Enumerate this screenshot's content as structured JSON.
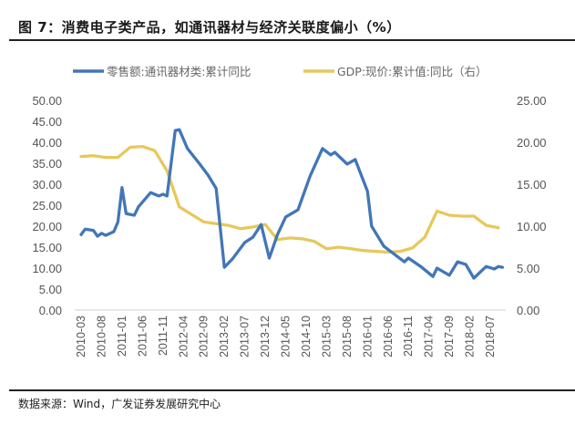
{
  "title": "图 7：消费电子类产品，如通讯器材与经济关联度偏小（%）",
  "source": "数据来源：Wind，广发证券发展研究中心",
  "chart_data": {
    "type": "line",
    "title": "",
    "legend_position": "top",
    "grid": false,
    "left_axis": {
      "ylim": [
        0,
        50
      ],
      "ticks": [
        "0.00",
        "5.00",
        "10.00",
        "15.00",
        "20.00",
        "25.00",
        "30.00",
        "35.00",
        "40.00",
        "45.00",
        "50.00"
      ]
    },
    "right_axis": {
      "ylim": [
        0,
        25
      ],
      "ticks": [
        "0.00",
        "5.00",
        "10.00",
        "15.00",
        "20.00",
        "25.00"
      ]
    },
    "x_ticks": [
      "2010-03",
      "2010-08",
      "2011-01",
      "2011-06",
      "2011-11",
      "2012-04",
      "2012-09",
      "2013-02",
      "2013-07",
      "2013-12",
      "2014-05",
      "2014-10",
      "2015-03",
      "2015-08",
      "2016-01",
      "2016-06",
      "2016-11",
      "2017-04",
      "2017-09",
      "2018-02",
      "2018-07"
    ],
    "series": [
      {
        "name": "零售额:通讯器材类:累计同比",
        "axis": "left",
        "color": "#4276B8",
        "points": [
          [
            "2010-03",
            18.0
          ],
          [
            "2010-04",
            19.3
          ],
          [
            "2010-06",
            19.0
          ],
          [
            "2010-07",
            17.6
          ],
          [
            "2010-08",
            18.3
          ],
          [
            "2010-09",
            17.8
          ],
          [
            "2010-11",
            18.7
          ],
          [
            "2010-12",
            21.0
          ],
          [
            "2011-01",
            29.2
          ],
          [
            "2011-02",
            23.0
          ],
          [
            "2011-04",
            22.6
          ],
          [
            "2011-05",
            24.6
          ],
          [
            "2011-08",
            28.0
          ],
          [
            "2011-10",
            27.2
          ],
          [
            "2011-11",
            27.6
          ],
          [
            "2011-12",
            27.2
          ],
          [
            "2012-02",
            42.8
          ],
          [
            "2012-03",
            43.0
          ],
          [
            "2012-05",
            38.5
          ],
          [
            "2012-08",
            34.8
          ],
          [
            "2012-10",
            32.2
          ],
          [
            "2012-12",
            29.0
          ],
          [
            "2013-02",
            10.2
          ],
          [
            "2013-04",
            12.2
          ],
          [
            "2013-07",
            16.1
          ],
          [
            "2013-09",
            17.4
          ],
          [
            "2013-11",
            20.4
          ],
          [
            "2014-01",
            12.4
          ],
          [
            "2014-03",
            18.0
          ],
          [
            "2014-05",
            22.2
          ],
          [
            "2014-08",
            23.9
          ],
          [
            "2014-11",
            32.0
          ],
          [
            "2015-02",
            38.5
          ],
          [
            "2015-04",
            37.0
          ],
          [
            "2015-05",
            37.6
          ],
          [
            "2015-08",
            34.8
          ],
          [
            "2015-10",
            35.9
          ],
          [
            "2016-01",
            28.3
          ],
          [
            "2016-02",
            20.0
          ],
          [
            "2016-05",
            15.2
          ],
          [
            "2016-10",
            11.5
          ],
          [
            "2016-11",
            12.4
          ],
          [
            "2017-02",
            10.4
          ],
          [
            "2017-05",
            8.0
          ],
          [
            "2017-06",
            10.0
          ],
          [
            "2017-09",
            8.3
          ],
          [
            "2017-11",
            11.5
          ],
          [
            "2018-01",
            10.9
          ],
          [
            "2018-03",
            7.6
          ],
          [
            "2018-06",
            10.4
          ],
          [
            "2018-08",
            9.8
          ],
          [
            "2018-09",
            10.4
          ],
          [
            "2018-10",
            10.2
          ]
        ]
      },
      {
        "name": "GDP:现价:累计值:同比（右）",
        "axis": "right",
        "color": "#E6C85C",
        "points": [
          [
            "2010-03",
            18.3
          ],
          [
            "2010-06",
            18.4
          ],
          [
            "2010-09",
            18.2
          ],
          [
            "2010-12",
            18.2
          ],
          [
            "2011-03",
            19.4
          ],
          [
            "2011-06",
            19.5
          ],
          [
            "2011-09",
            19.0
          ],
          [
            "2011-12",
            16.6
          ],
          [
            "2012-03",
            12.3
          ],
          [
            "2012-06",
            11.4
          ],
          [
            "2012-09",
            10.5
          ],
          [
            "2012-12",
            10.3
          ],
          [
            "2013-03",
            10.1
          ],
          [
            "2013-06",
            9.7
          ],
          [
            "2013-09",
            9.9
          ],
          [
            "2013-12",
            10.2
          ],
          [
            "2014-03",
            8.4
          ],
          [
            "2014-06",
            8.6
          ],
          [
            "2014-09",
            8.5
          ],
          [
            "2014-12",
            8.2
          ],
          [
            "2015-03",
            7.3
          ],
          [
            "2015-06",
            7.5
          ],
          [
            "2015-09",
            7.3
          ],
          [
            "2015-12",
            7.1
          ],
          [
            "2016-03",
            7.0
          ],
          [
            "2016-06",
            6.9
          ],
          [
            "2016-09",
            7.0
          ],
          [
            "2016-12",
            7.4
          ],
          [
            "2017-03",
            8.7
          ],
          [
            "2017-06",
            11.8
          ],
          [
            "2017-09",
            11.3
          ],
          [
            "2017-12",
            11.2
          ],
          [
            "2018-03",
            11.2
          ],
          [
            "2018-06",
            10.1
          ],
          [
            "2018-09",
            9.8
          ]
        ]
      }
    ]
  }
}
